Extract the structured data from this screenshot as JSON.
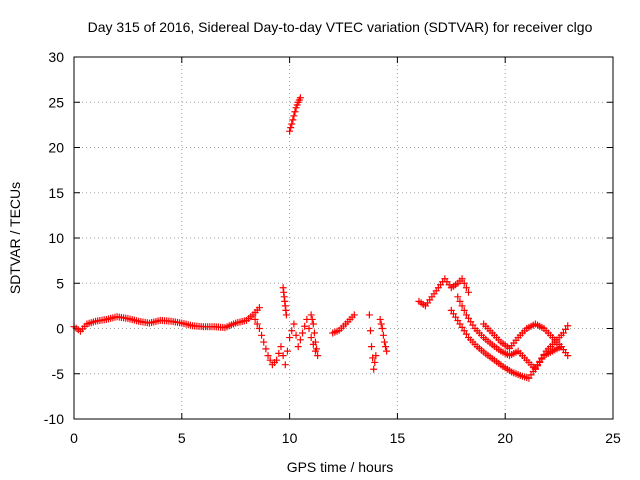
{
  "chart_data": {
    "type": "scatter",
    "title": "Day 315 of 2016, Sidereal Day-to-day VTEC variation (SDTVAR) for receiver clgo",
    "xlabel": "GPS time / hours",
    "ylabel": "SDTVAR / TECUs",
    "xlim": [
      0,
      25
    ],
    "ylim": [
      -10,
      30
    ],
    "x_ticks": [
      0,
      5,
      10,
      15,
      20,
      25
    ],
    "y_ticks": [
      -10,
      -5,
      0,
      5,
      10,
      15,
      20,
      25,
      30
    ],
    "x_tick_labels": [
      "0",
      "5",
      "10",
      "15",
      "20",
      "25"
    ],
    "y_tick_labels": [
      "-10",
      "-5",
      "0",
      "5",
      "10",
      "15",
      "20",
      "25",
      "30"
    ],
    "grid": true,
    "marker": "+",
    "color": "#ff0000",
    "series": [
      {
        "name": "SDTVAR",
        "segments": [
          {
            "x": [
              0.0,
              0.3,
              0.6,
              1.0,
              1.5,
              2.0,
              2.5,
              3.0,
              3.5,
              4.0,
              4.5,
              5.0,
              5.5,
              6.0,
              6.5,
              7.0,
              7.5,
              8.0,
              8.3,
              8.6
            ],
            "y": [
              0.2,
              -0.3,
              0.5,
              0.8,
              1.0,
              1.3,
              1.1,
              0.8,
              0.6,
              0.9,
              0.8,
              0.6,
              0.3,
              0.2,
              0.2,
              0.1,
              0.6,
              0.9,
              1.5,
              2.3
            ]
          },
          {
            "x": [
              8.4,
              8.6,
              8.8,
              9.0,
              9.2,
              9.4,
              9.6,
              9.8,
              10.0,
              10.2,
              10.4,
              10.6,
              10.8,
              11.0,
              11.2
            ],
            "y": [
              1.0,
              0.0,
              -1.5,
              -3.0,
              -4.0,
              -3.5,
              -2.0,
              -4.0,
              -1.0,
              0.5,
              -2.0,
              -0.5,
              1.0,
              -1.0,
              -2.5
            ]
          },
          {
            "x": [
              9.7,
              9.75,
              9.8,
              9.85
            ],
            "y": [
              4.5,
              3.5,
              2.5,
              1.5
            ]
          },
          {
            "x": [
              10.0,
              10.1,
              10.2,
              10.3,
              10.4,
              10.5
            ],
            "y": [
              21.8,
              22.6,
              23.5,
              24.4,
              25.0,
              25.5
            ]
          },
          {
            "x": [
              11.0,
              11.1,
              11.2,
              11.3
            ],
            "y": [
              1.5,
              0.5,
              -1.5,
              -3.0
            ]
          },
          {
            "x": [
              12.0,
              12.3,
              12.6,
              12.8,
              13.0
            ],
            "y": [
              -0.5,
              -0.2,
              0.5,
              1.0,
              1.5
            ]
          },
          {
            "x": [
              13.7,
              13.8,
              13.9,
              14.0
            ],
            "y": [
              1.5,
              -2.0,
              -4.5,
              -3.0
            ]
          },
          {
            "x": [
              14.2,
              14.3,
              14.4,
              14.5
            ],
            "y": [
              1.0,
              0.0,
              -1.5,
              -2.5
            ]
          },
          {
            "x": [
              16.0,
              16.3,
              16.6,
              16.9,
              17.2,
              17.5,
              17.8,
              18.0,
              18.3
            ],
            "y": [
              3.0,
              2.5,
              3.5,
              4.5,
              5.5,
              4.5,
              5.0,
              5.5,
              4.0
            ]
          },
          {
            "x": [
              17.8,
              18.2,
              18.6,
              19.0,
              19.4,
              19.8,
              20.2,
              20.6,
              21.0,
              21.4,
              21.8,
              22.2,
              22.6,
              22.9
            ],
            "y": [
              3.5,
              1.5,
              0.0,
              -1.0,
              -1.8,
              -2.5,
              -3.0,
              -2.5,
              -3.5,
              -4.5,
              -3.0,
              -2.5,
              -2.0,
              -3.0
            ]
          },
          {
            "x": [
              17.5,
              17.9,
              18.3,
              18.7,
              19.1,
              19.5,
              19.9,
              20.3,
              20.7,
              21.1,
              21.5,
              21.9,
              22.3,
              22.7,
              22.9
            ],
            "y": [
              2.0,
              0.5,
              -1.0,
              -2.0,
              -2.8,
              -3.5,
              -4.2,
              -4.8,
              -5.2,
              -5.5,
              -4.0,
              -2.5,
              -1.5,
              -0.5,
              0.3
            ]
          },
          {
            "x": [
              19.0,
              19.4,
              19.8,
              20.2,
              20.6,
              21.0,
              21.4,
              21.8,
              22.2,
              22.6
            ],
            "y": [
              0.5,
              -0.5,
              -1.5,
              -2.2,
              -1.0,
              0.0,
              0.5,
              0.0,
              -1.0,
              -2.0
            ]
          }
        ]
      }
    ]
  }
}
